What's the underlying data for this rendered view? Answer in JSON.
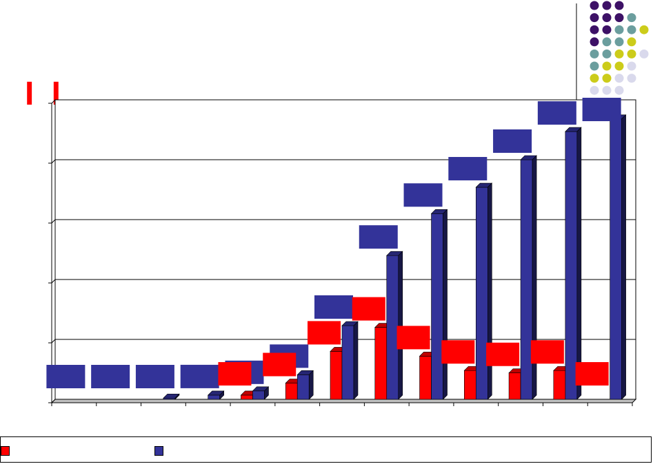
{
  "chart_data": {
    "type": "bar",
    "title": "",
    "xlabel": "",
    "ylabel": "",
    "ylim": [
      0,
      5
    ],
    "grid": true,
    "three_d": true,
    "categories": [
      "",
      "",
      "",
      "",
      "",
      "",
      "",
      "",
      "",
      "",
      "",
      "",
      ""
    ],
    "series": [
      {
        "color": "#ff0000",
        "values": [
          0,
          0,
          0,
          0,
          0.07,
          0.27,
          0.8,
          1.2,
          0.72,
          0.48,
          0.44,
          0.48,
          0
        ]
      },
      {
        "color": "#333399",
        "values": [
          0,
          0,
          0.02,
          0.07,
          0.14,
          0.41,
          1.23,
          2.4,
          3.1,
          3.54,
          4.0,
          4.47,
          4.68
        ]
      }
    ],
    "label_boxes": {
      "series2_present": [
        true,
        true,
        true,
        true,
        true,
        true,
        true,
        true,
        true,
        true,
        true,
        true,
        true
      ],
      "series1_present": [
        false,
        false,
        false,
        false,
        true,
        true,
        true,
        true,
        true,
        true,
        true,
        true,
        true
      ]
    },
    "legend": {
      "position": "bottom",
      "entries": [
        "",
        ""
      ]
    }
  },
  "decor": {
    "title_marks": "I I",
    "dot_colors": [
      "#3d1166",
      "#6b9e9e",
      "#cccc1a",
      "#d9d9ec"
    ]
  }
}
